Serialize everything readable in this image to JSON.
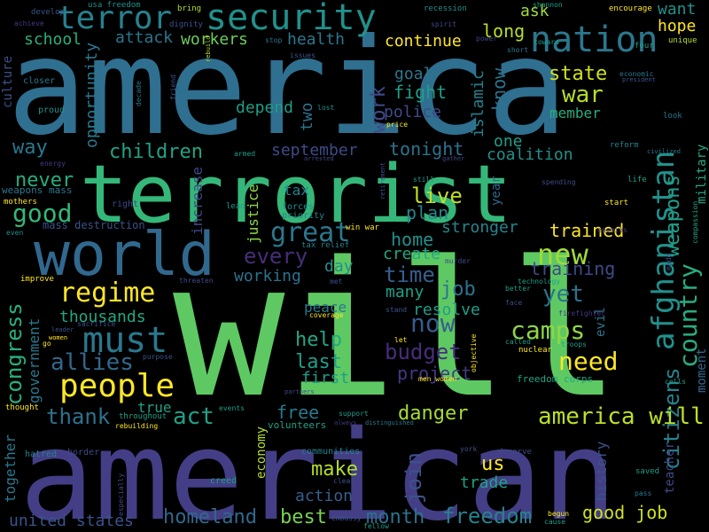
{
  "words": [
    {
      "text": "america",
      "color": "#2f6f8f"
    },
    {
      "text": "will",
      "color": "#5ec962"
    },
    {
      "text": "american",
      "color": "#433e85"
    },
    {
      "text": "terrorist",
      "color": "#35b779"
    },
    {
      "text": "world",
      "color": "#31688e"
    },
    {
      "text": "nation",
      "color": "#2a788e"
    },
    {
      "text": "security",
      "color": "#21918c"
    },
    {
      "text": "terror",
      "color": "#26828e"
    },
    {
      "text": "must",
      "color": "#2a788e"
    },
    {
      "text": "people",
      "color": "#fde725"
    },
    {
      "text": "afghanistan",
      "color": "#21918c"
    },
    {
      "text": "regime",
      "color": "#fde725"
    },
    {
      "text": "new",
      "color": "#a0da39"
    },
    {
      "text": "war",
      "color": "#b5de2b"
    },
    {
      "text": "country",
      "color": "#27ad81"
    },
    {
      "text": "citizens",
      "color": "#26828e"
    },
    {
      "text": "weapons",
      "color": "#1f9e89"
    },
    {
      "text": "great",
      "color": "#2a788e"
    },
    {
      "text": "good",
      "color": "#35b779"
    },
    {
      "text": "allies",
      "color": "#31688e"
    },
    {
      "text": "children",
      "color": "#20a386"
    },
    {
      "text": "work",
      "color": "#3e4a89"
    },
    {
      "text": "state",
      "color": "#d0e11c"
    },
    {
      "text": "act",
      "color": "#1fa187"
    },
    {
      "text": "thank",
      "color": "#2c728e"
    },
    {
      "text": "now",
      "color": "#365c8d"
    },
    {
      "text": "need",
      "color": "#fde725"
    },
    {
      "text": "camps",
      "color": "#8fd744"
    },
    {
      "text": "freedom",
      "color": "#26828e"
    },
    {
      "text": "america will",
      "color": "#bddf26"
    },
    {
      "text": "congress",
      "color": "#29af7f"
    },
    {
      "text": "united states",
      "color": "#3b528b"
    },
    {
      "text": "homeland",
      "color": "#31688e"
    },
    {
      "text": "best",
      "color": "#7ad151"
    },
    {
      "text": "month",
      "color": "#2c728e"
    },
    {
      "text": "good job",
      "color": "#d0e11c"
    },
    {
      "text": "make",
      "color": "#b5de2b"
    },
    {
      "text": "help",
      "color": "#22a884"
    },
    {
      "text": "last",
      "color": "#1f9e89"
    },
    {
      "text": "first",
      "color": "#1f9e89"
    },
    {
      "text": "budget",
      "color": "#472d7b"
    },
    {
      "text": "project",
      "color": "#443983"
    },
    {
      "text": "danger",
      "color": "#a5db36"
    },
    {
      "text": "free",
      "color": "#2a788e"
    },
    {
      "text": "join",
      "color": "#3b528b"
    },
    {
      "text": "us",
      "color": "#fde725"
    },
    {
      "text": "trade",
      "color": "#1fa187"
    },
    {
      "text": "action",
      "color": "#355f8d"
    },
    {
      "text": "time",
      "color": "#355f8d"
    },
    {
      "text": "job",
      "color": "#2c728e"
    },
    {
      "text": "yet",
      "color": "#2c728e"
    },
    {
      "text": "training",
      "color": "#3e4a89"
    },
    {
      "text": "trained",
      "color": "#fde725"
    },
    {
      "text": "home",
      "color": "#21918c"
    },
    {
      "text": "create",
      "color": "#22a884"
    },
    {
      "text": "many",
      "color": "#1fa187"
    },
    {
      "text": "resolve",
      "color": "#1f9e89"
    },
    {
      "text": "every",
      "color": "#472d7b"
    },
    {
      "text": "working",
      "color": "#2c728e"
    },
    {
      "text": "day",
      "color": "#21918c"
    },
    {
      "text": "live",
      "color": "#c2df23"
    },
    {
      "text": "plan",
      "color": "#25858e"
    },
    {
      "text": "stronger",
      "color": "#24868e"
    },
    {
      "text": "coalition",
      "color": "#21918c"
    },
    {
      "text": "september",
      "color": "#3e4a89"
    },
    {
      "text": "tonight",
      "color": "#2c728e"
    },
    {
      "text": "one",
      "color": "#1f9e89"
    },
    {
      "text": "police",
      "color": "#3e4a89"
    },
    {
      "text": "islamic",
      "color": "#26828e"
    },
    {
      "text": "goal",
      "color": "#2a788e"
    },
    {
      "text": "fight",
      "color": "#1f9e89"
    },
    {
      "text": "know",
      "color": "#2c728e"
    },
    {
      "text": "member",
      "color": "#27ad81"
    },
    {
      "text": "long",
      "color": "#b8de29"
    },
    {
      "text": "ask",
      "color": "#a0da39"
    },
    {
      "text": "hope",
      "color": "#fde725"
    },
    {
      "text": "want",
      "color": "#21918c"
    },
    {
      "text": "health",
      "color": "#2a788e"
    },
    {
      "text": "continue",
      "color": "#fde725"
    },
    {
      "text": "attack",
      "color": "#2a788e"
    },
    {
      "text": "workers",
      "color": "#6ccd5a"
    },
    {
      "text": "school",
      "color": "#29af7f"
    },
    {
      "text": "depend",
      "color": "#1f9e89"
    },
    {
      "text": "two",
      "color": "#2c728e"
    },
    {
      "text": "opportunity",
      "color": "#2a788e"
    },
    {
      "text": "way",
      "color": "#2a788e"
    },
    {
      "text": "never",
      "color": "#27ad81"
    },
    {
      "text": "thousands",
      "color": "#22a884"
    },
    {
      "text": "government",
      "color": "#2a788e"
    },
    {
      "text": "together",
      "color": "#2a788e"
    },
    {
      "text": "true",
      "color": "#1fa187"
    },
    {
      "text": "increase",
      "color": "#3e4a89"
    },
    {
      "text": "justice",
      "color": "#8fd744"
    },
    {
      "text": "tax",
      "color": "#26828e"
    },
    {
      "text": "economy",
      "color": "#b5de2b"
    },
    {
      "text": "history",
      "color": "#3b528b"
    },
    {
      "text": "teacher",
      "color": "#3e4a89"
    },
    {
      "text": "military",
      "color": "#22a884"
    },
    {
      "text": "moment",
      "color": "#31688e"
    },
    {
      "text": "evil",
      "color": "#2a788e"
    },
    {
      "text": "year",
      "color": "#31688e"
    },
    {
      "text": "culture",
      "color": "#3b528b"
    },
    {
      "text": "peace",
      "color": "#2a788e"
    },
    {
      "text": "mass destruction",
      "color": "#3b528b"
    },
    {
      "text": "weapons mass",
      "color": "#2a788e"
    },
    {
      "text": "freedom corps",
      "color": "#20a386"
    },
    {
      "text": "volunteers",
      "color": "#1fa187"
    },
    {
      "text": "communities",
      "color": "#26828e"
    },
    {
      "text": "border",
      "color": "#3e4a89"
    },
    {
      "text": "hatred",
      "color": "#26828e"
    },
    {
      "text": "creed",
      "color": "#1fa187"
    },
    {
      "text": "thought",
      "color": "#fde725"
    },
    {
      "text": "throughout",
      "color": "#1fa187"
    },
    {
      "text": "especially",
      "color": "#3e4a89"
    },
    {
      "text": "forces",
      "color": "#21918c"
    },
    {
      "text": "priority",
      "color": "#26828e"
    },
    {
      "text": "tax relief",
      "color": "#26828e"
    },
    {
      "text": "win war",
      "color": "#fde725"
    },
    {
      "text": "right",
      "color": "#3e4a89"
    },
    {
      "text": "lead",
      "color": "#1f9e89"
    },
    {
      "text": "mothers",
      "color": "#fde725"
    },
    {
      "text": "even",
      "color": "#21918c"
    },
    {
      "text": "improve",
      "color": "#fde725"
    },
    {
      "text": "proud",
      "color": "#21918c"
    },
    {
      "text": "closer",
      "color": "#2a788e"
    },
    {
      "text": "develop",
      "color": "#3b528b"
    },
    {
      "text": "achieve",
      "color": "#443983"
    },
    {
      "text": "usa freedom",
      "color": "#21918c"
    },
    {
      "text": "bring",
      "color": "#b5de2b"
    },
    {
      "text": "dignity",
      "color": "#3b528b"
    },
    {
      "text": "recession",
      "color": "#21918c"
    },
    {
      "text": "spirit",
      "color": "#3e4a89"
    },
    {
      "text": "shannon",
      "color": "#1fa187"
    },
    {
      "text": "encourage",
      "color": "#fde725"
    },
    {
      "text": "unique",
      "color": "#b5de2b"
    },
    {
      "text": "four",
      "color": "#1f9e89"
    },
    {
      "text": "toward",
      "color": "#1f9e89"
    },
    {
      "text": "power",
      "color": "#3e4a89"
    },
    {
      "text": "short",
      "color": "#2a788e"
    },
    {
      "text": "economic",
      "color": "#2a788e"
    },
    {
      "text": "president",
      "color": "#3b528b"
    },
    {
      "text": "stop",
      "color": "#2a788e"
    },
    {
      "text": "issues",
      "color": "#3b528b"
    },
    {
      "text": "rebuild",
      "color": "#b5de2b"
    },
    {
      "text": "friend",
      "color": "#3b528b"
    },
    {
      "text": "decade",
      "color": "#2a788e"
    },
    {
      "text": "lost",
      "color": "#21918c"
    },
    {
      "text": "price",
      "color": "#fde725"
    },
    {
      "text": "look",
      "color": "#2a788e"
    },
    {
      "text": "reform",
      "color": "#26828e"
    },
    {
      "text": "civilized",
      "color": "#2a788e"
    },
    {
      "text": "life",
      "color": "#1fa187"
    },
    {
      "text": "spending",
      "color": "#3e4a89"
    },
    {
      "text": "start",
      "color": "#fde725"
    },
    {
      "text": "compassion",
      "color": "#1fa187"
    },
    {
      "text": "enemies",
      "color": "#443983"
    },
    {
      "text": "technology",
      "color": "#1f9e89"
    },
    {
      "text": "better",
      "color": "#1f9e89"
    },
    {
      "text": "face",
      "color": "#3e4a89"
    },
    {
      "text": "made",
      "color": "#3b528b"
    },
    {
      "text": "firefighter",
      "color": "#443983"
    },
    {
      "text": "troops",
      "color": "#1f9e89"
    },
    {
      "text": "called",
      "color": "#1f9e89"
    },
    {
      "text": "nuclear",
      "color": "#fde725"
    },
    {
      "text": "cells",
      "color": "#1f9e89"
    },
    {
      "text": "deserve",
      "color": "#3e4a89"
    },
    {
      "text": "saved",
      "color": "#1f9e89"
    },
    {
      "text": "pass",
      "color": "#2a788e"
    },
    {
      "text": "begun",
      "color": "#fde725"
    },
    {
      "text": "cause",
      "color": "#1f9e89"
    },
    {
      "text": "fellow",
      "color": "#1f9e89"
    },
    {
      "text": "embassy",
      "color": "#3b528b"
    },
    {
      "text": "york",
      "color": "#3b528b"
    },
    {
      "text": "clear",
      "color": "#3b528b"
    },
    {
      "text": "distinguished",
      "color": "#2a788e"
    },
    {
      "text": "always",
      "color": "#443983"
    },
    {
      "text": "support",
      "color": "#1f9e89"
    },
    {
      "text": "events",
      "color": "#1f9e89"
    },
    {
      "text": "partners",
      "color": "#3e4a89"
    },
    {
      "text": "men women",
      "color": "#fde725"
    },
    {
      "text": "let",
      "color": "#fde725"
    },
    {
      "text": "objective",
      "color": "#fde725"
    },
    {
      "text": "stand",
      "color": "#3b528b"
    },
    {
      "text": "coverage",
      "color": "#fde725"
    },
    {
      "text": "met",
      "color": "#3b528b"
    },
    {
      "text": "murder",
      "color": "#3e4a89"
    },
    {
      "text": "threaten",
      "color": "#3e4a89"
    },
    {
      "text": "armed",
      "color": "#1f9e89"
    },
    {
      "text": "arrested",
      "color": "#3e4a89"
    },
    {
      "text": "retirement",
      "color": "#3b528b"
    },
    {
      "text": "gather",
      "color": "#3e4a89"
    },
    {
      "text": "still",
      "color": "#1f9e89"
    },
    {
      "text": "energy",
      "color": "#443983"
    },
    {
      "text": "women",
      "color": "#fde725"
    },
    {
      "text": "leader",
      "color": "#3b528b"
    },
    {
      "text": "sacrifice",
      "color": "#3b528b"
    },
    {
      "text": "purpose",
      "color": "#3b528b"
    },
    {
      "text": "go",
      "color": "#fde725"
    },
    {
      "text": "rebuilding",
      "color": "#fde725"
    }
  ]
}
